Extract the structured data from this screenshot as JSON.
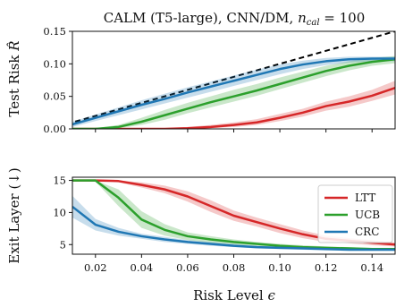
{
  "chart_data": [
    {
      "type": "line",
      "title": "CALM (T5-large), CNN/DM, ",
      "title_italic": "n",
      "title_sub": "cal",
      "title_suffix": " = 100",
      "ylabel": "Test Risk ",
      "ylabel_symbol": "R̂",
      "xlabel": "",
      "xlim": [
        0.01,
        0.15
      ],
      "ylim": [
        0.0,
        0.15
      ],
      "yticks": [
        "0.00",
        "0.05",
        "0.10",
        "0.15"
      ],
      "yticks_values": [
        0.0,
        0.05,
        0.1,
        0.15
      ],
      "grid": false,
      "diagonal": {
        "style": "dashed",
        "color": "#000000",
        "from": [
          0.0,
          0.0
        ],
        "to": [
          0.15,
          0.15
        ]
      },
      "x": [
        0.01,
        0.02,
        0.03,
        0.04,
        0.05,
        0.06,
        0.07,
        0.08,
        0.09,
        0.1,
        0.11,
        0.12,
        0.13,
        0.14,
        0.15
      ],
      "series": [
        {
          "name": "LTT",
          "color": "#d62728",
          "values": [
            0.0,
            0.0,
            0.0,
            0.0,
            0.0,
            0.001,
            0.003,
            0.006,
            0.01,
            0.017,
            0.025,
            0.035,
            0.042,
            0.051,
            0.063
          ],
          "lower": [
            0.0,
            0.0,
            0.0,
            0.0,
            0.0,
            0.0,
            0.001,
            0.003,
            0.006,
            0.012,
            0.019,
            0.028,
            0.034,
            0.043,
            0.053
          ],
          "upper": [
            0.0,
            0.0,
            0.0,
            0.0,
            0.001,
            0.003,
            0.006,
            0.01,
            0.015,
            0.023,
            0.031,
            0.042,
            0.05,
            0.06,
            0.074
          ]
        },
        {
          "name": "UCB",
          "color": "#2ca02c",
          "values": [
            0.0,
            0.0,
            0.003,
            0.011,
            0.021,
            0.031,
            0.041,
            0.05,
            0.059,
            0.069,
            0.079,
            0.089,
            0.097,
            0.103,
            0.107
          ],
          "lower": [
            0.0,
            0.0,
            0.001,
            0.006,
            0.014,
            0.024,
            0.033,
            0.042,
            0.051,
            0.061,
            0.071,
            0.081,
            0.09,
            0.097,
            0.101
          ],
          "upper": [
            0.0,
            0.001,
            0.006,
            0.017,
            0.029,
            0.04,
            0.05,
            0.06,
            0.069,
            0.079,
            0.088,
            0.097,
            0.104,
            0.109,
            0.112
          ]
        },
        {
          "name": "CRC",
          "color": "#1f77b4",
          "values": [
            0.007,
            0.017,
            0.027,
            0.037,
            0.046,
            0.056,
            0.065,
            0.074,
            0.083,
            0.092,
            0.099,
            0.104,
            0.107,
            0.108,
            0.108
          ],
          "lower": [
            0.003,
            0.012,
            0.021,
            0.03,
            0.039,
            0.048,
            0.057,
            0.066,
            0.075,
            0.084,
            0.092,
            0.098,
            0.102,
            0.104,
            0.104
          ],
          "upper": [
            0.011,
            0.022,
            0.033,
            0.044,
            0.054,
            0.064,
            0.073,
            0.082,
            0.091,
            0.099,
            0.105,
            0.109,
            0.111,
            0.111,
            0.111
          ]
        }
      ]
    },
    {
      "type": "line",
      "title": "",
      "ylabel": "Exit Layer (↓)",
      "xlabel": "Risk Level ",
      "xlabel_symbol": "ϵ",
      "xlim": [
        0.01,
        0.15
      ],
      "ylim": [
        3.5,
        15.5
      ],
      "xticks": [
        "0.02",
        "0.04",
        "0.06",
        "0.08",
        "0.10",
        "0.12",
        "0.14"
      ],
      "xticks_values": [
        0.02,
        0.04,
        0.06,
        0.08,
        0.1,
        0.12,
        0.14
      ],
      "yticks": [
        "5",
        "10",
        "15"
      ],
      "yticks_values": [
        5,
        10,
        15
      ],
      "grid": false,
      "legend": {
        "position": "right",
        "entries": [
          "LTT",
          "UCB",
          "CRC"
        ]
      },
      "x": [
        0.01,
        0.02,
        0.03,
        0.04,
        0.05,
        0.06,
        0.07,
        0.08,
        0.09,
        0.1,
        0.11,
        0.12,
        0.13,
        0.14,
        0.15
      ],
      "series": [
        {
          "name": "LTT",
          "color": "#d62728",
          "values": [
            15.0,
            15.0,
            14.9,
            14.3,
            13.6,
            12.5,
            11.0,
            9.5,
            8.5,
            7.5,
            6.6,
            5.9,
            5.6,
            5.3,
            5.0
          ],
          "lower": [
            15.0,
            15.0,
            14.7,
            13.9,
            13.0,
            11.7,
            10.1,
            8.7,
            7.8,
            6.8,
            6.0,
            5.4,
            5.2,
            4.9,
            4.7
          ],
          "upper": [
            15.0,
            15.0,
            15.0,
            14.7,
            14.2,
            13.3,
            11.9,
            10.3,
            9.2,
            8.2,
            7.2,
            6.4,
            6.0,
            5.7,
            5.3
          ]
        },
        {
          "name": "UCB",
          "color": "#2ca02c",
          "values": [
            15.0,
            15.0,
            12.3,
            8.9,
            7.3,
            6.3,
            5.8,
            5.4,
            5.1,
            4.8,
            4.6,
            4.5,
            4.4,
            4.3,
            4.3
          ],
          "lower": [
            15.0,
            14.8,
            11.0,
            7.6,
            6.4,
            5.7,
            5.3,
            5.0,
            4.8,
            4.5,
            4.4,
            4.3,
            4.2,
            4.1,
            4.1
          ],
          "upper": [
            15.0,
            15.0,
            13.6,
            10.2,
            8.2,
            6.9,
            6.3,
            5.8,
            5.4,
            5.1,
            4.9,
            4.7,
            4.6,
            4.5,
            4.5
          ]
        },
        {
          "name": "CRC",
          "color": "#1f77b4",
          "values": [
            10.9,
            8.1,
            7.0,
            6.3,
            5.8,
            5.4,
            5.1,
            4.8,
            4.6,
            4.5,
            4.4,
            4.3,
            4.2,
            4.2,
            4.2
          ],
          "lower": [
            9.2,
            7.2,
            6.4,
            5.9,
            5.4,
            5.1,
            4.8,
            4.6,
            4.4,
            4.3,
            4.2,
            4.1,
            4.1,
            4.1,
            4.1
          ],
          "upper": [
            12.6,
            9.0,
            7.6,
            6.7,
            6.2,
            5.7,
            5.4,
            5.1,
            4.8,
            4.7,
            4.6,
            4.5,
            4.3,
            4.3,
            4.3
          ]
        }
      ]
    }
  ]
}
